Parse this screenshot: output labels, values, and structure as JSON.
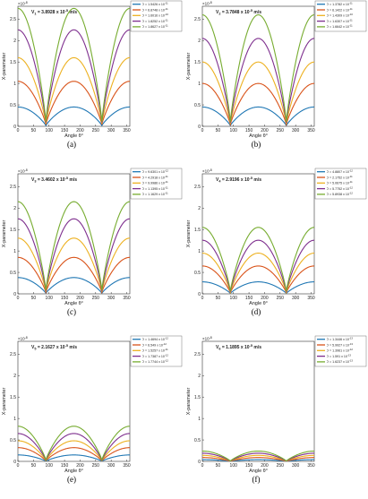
{
  "colors": {
    "series": [
      "#1f77b4",
      "#d95319",
      "#edb120",
      "#7e2f8e",
      "#77ac30"
    ],
    "axis": "#333333",
    "text": "#222222"
  },
  "chart_data": [
    {
      "type": "line",
      "caption": "(a)",
      "title": "V",
      "title_sub": "1",
      "title_value": " = 3.8928 x 10",
      "title_exp": "-5",
      "title_unit": " m/s",
      "xlabel": "Angle θ°",
      "ylabel": "X-parameter",
      "axis_exponent": "-8",
      "xlim": [
        0,
        360
      ],
      "ylim": [
        0,
        2.8e-08
      ],
      "xticks": [
        "0",
        "50",
        "100",
        "150",
        "200",
        "250",
        "300",
        "350"
      ],
      "yticks": [
        "0",
        "0.5",
        "1",
        "1.5",
        "2",
        "2.5"
      ],
      "legend_position": "top-right",
      "legend_symbol": "ℑ",
      "legend": [
        {
          "mantissa": " = 1.5426 x 10",
          "exp": "-11"
        },
        {
          "mantissa": " = 6.8748 x 10",
          "exp": "-11"
        },
        {
          "mantissa": " = 1.6016 x 10",
          "exp": "-10"
        },
        {
          "mantissa": " = 1.8252 x 10",
          "exp": "-11"
        },
        {
          "mantissa": " = 1.8627 x 10",
          "exp": "-11"
        }
      ],
      "series_peaks": [
        4.5e-09,
        1.05e-08,
        1.6e-08,
        2.25e-08,
        2.75e-08
      ]
    },
    {
      "type": "line",
      "caption": "(b)",
      "title": "V",
      "title_sub": "2",
      "title_value": " = 3.7848 x 10",
      "title_exp": "-5",
      "title_unit": " m/s",
      "xlabel": "Angle θ°",
      "ylabel": "X-parameter",
      "axis_exponent": "-8",
      "xlim": [
        0,
        360
      ],
      "ylim": [
        0,
        2.8e-08
      ],
      "xticks": [
        "0",
        "50",
        "100",
        "150",
        "200",
        "250",
        "300",
        "350"
      ],
      "yticks": [
        "0",
        "0.5",
        "1",
        "1.5",
        "2",
        "2.5"
      ],
      "legend_position": "top-right",
      "legend_symbol": "ℑ",
      "legend": [
        {
          "mantissa": " = 1.3782 x 10",
          "exp": "-11"
        },
        {
          "mantissa": " = 6.1422 x 10",
          "exp": "-11"
        },
        {
          "mantissa": " = 1.4309 x 10",
          "exp": "-10"
        },
        {
          "mantissa": " = 1.6307 x 10",
          "exp": "-11"
        },
        {
          "mantissa": " = 1.6642 x 10",
          "exp": "-11"
        }
      ],
      "series_peaks": [
        4.5e-09,
        1e-08,
        1.5e-08,
        2.05e-08,
        2.6e-08
      ]
    },
    {
      "type": "line",
      "caption": "(c)",
      "title": "V",
      "title_sub": "3",
      "title_value": " = 3.4602 x 10",
      "title_exp": "-5",
      "title_unit": " m/s",
      "xlabel": "Angle θ°",
      "ylabel": "X-parameter",
      "axis_exponent": "-8",
      "xlim": [
        0,
        360
      ],
      "ylim": [
        0,
        2.8e-08
      ],
      "xticks": [
        "0",
        "50",
        "100",
        "150",
        "200",
        "250",
        "300",
        "350"
      ],
      "yticks": [
        "0",
        "0.5",
        "1",
        "1.5",
        "2",
        "2.5"
      ],
      "legend_position": "top-right",
      "legend_symbol": "ℑ",
      "legend": [
        {
          "mantissa": " = 9.6301 x 10",
          "exp": "-12"
        },
        {
          "mantissa": " = 4.2918 x 10",
          "exp": "-11"
        },
        {
          "mantissa": " = 9.9986 x 10",
          "exp": "-11"
        },
        {
          "mantissa": " = 1.1395 x 10",
          "exp": "-11"
        },
        {
          "mantissa": " = 1.1629 x 10",
          "exp": "-11"
        }
      ],
      "series_peaks": [
        3.8e-09,
        8.5e-09,
        1.3e-08,
        1.75e-08,
        2.15e-08
      ]
    },
    {
      "type": "line",
      "caption": "(d)",
      "title": "V",
      "title_sub": "4",
      "title_value": " = 2.9196 x 10",
      "title_exp": "-5",
      "title_unit": " m/s",
      "xlabel": "Angle θ°",
      "ylabel": "X-parameter",
      "axis_exponent": "-8",
      "xlim": [
        0,
        360
      ],
      "ylim": [
        0,
        2.8e-08
      ],
      "xticks": [
        "0",
        "50",
        "100",
        "150",
        "200",
        "250",
        "300",
        "350"
      ],
      "yticks": [
        "0",
        "0.5",
        "1",
        "1.5",
        "2",
        "2.5"
      ],
      "legend_position": "top-right",
      "legend_symbol": "ℑ",
      "legend": [
        {
          "mantissa": " = 4.8807 x 10",
          "exp": "-12"
        },
        {
          "mantissa": " = 2.1752 x 10",
          "exp": "-11"
        },
        {
          "mantissa": " = 5.0675 x 10",
          "exp": "-11"
        },
        {
          "mantissa": " = 5.7752 x 10",
          "exp": "-12"
        },
        {
          "mantissa": " = 5.8938 x 10",
          "exp": "-12"
        }
      ],
      "series_peaks": [
        2.8e-09,
        6.5e-09,
        9.5e-09,
        1.25e-08,
        1.55e-08
      ]
    },
    {
      "type": "line",
      "caption": "(e)",
      "title": "V",
      "title_sub": "5",
      "title_value": " = 2.1627 x 10",
      "title_exp": "-5",
      "title_unit": " m/s",
      "xlabel": "Angle θ°",
      "ylabel": "X-parameter",
      "axis_exponent": "-8",
      "xlim": [
        0,
        360
      ],
      "ylim": [
        0,
        2.8e-08
      ],
      "xticks": [
        "0",
        "50",
        "100",
        "150",
        "200",
        "250",
        "300",
        "350"
      ],
      "yticks": [
        "0",
        "0.5",
        "1",
        "1.5",
        "2",
        "2.5"
      ],
      "legend_position": "top-right",
      "legend_symbol": "ℑ",
      "legend": [
        {
          "mantissa": " = 1.4694 x 10",
          "exp": "-12"
        },
        {
          "mantissa": " = 6.549 x 10",
          "exp": "-12"
        },
        {
          "mantissa": " = 1.5257 x 10",
          "exp": "-11"
        },
        {
          "mantissa": " = 1.7387 x 10",
          "exp": "-12"
        },
        {
          "mantissa": " = 1.7744 x 10",
          "exp": "-12"
        }
      ],
      "series_peaks": [
        1.5e-09,
        3.2e-09,
        4.8e-09,
        6.5e-09,
        8.2e-09
      ]
    },
    {
      "type": "line",
      "caption": "(f)",
      "title": "V",
      "title_sub": "6",
      "title_value": " = 1.1895 x 10",
      "title_exp": "-5",
      "title_unit": " m/s",
      "xlabel": "Angle θ°",
      "ylabel": "X-parameter",
      "axis_exponent": "-8",
      "xlim": [
        0,
        360
      ],
      "ylim": [
        0,
        2.8e-08
      ],
      "xticks": [
        "0",
        "50",
        "100",
        "150",
        "200",
        "250",
        "300",
        "350"
      ],
      "yticks": [
        "0",
        "0.5",
        "1",
        "1.5",
        "2",
        "2.5"
      ],
      "legend_position": "top-right",
      "legend_symbol": "ℑ",
      "legend": [
        {
          "mantissa": " = 1.3446 x 10",
          "exp": "-13"
        },
        {
          "mantissa": " = 5.9927 x 10",
          "exp": "-13"
        },
        {
          "mantissa": " = 1.3961 x 10",
          "exp": "-12"
        },
        {
          "mantissa": " = 1.591 x 10",
          "exp": "-13"
        },
        {
          "mantissa": " = 1.6237 x 10",
          "exp": "-13"
        }
      ],
      "series_peaks": [
        4e-10,
        9e-10,
        1.4e-09,
        1.9e-09,
        2.4e-09
      ]
    }
  ]
}
